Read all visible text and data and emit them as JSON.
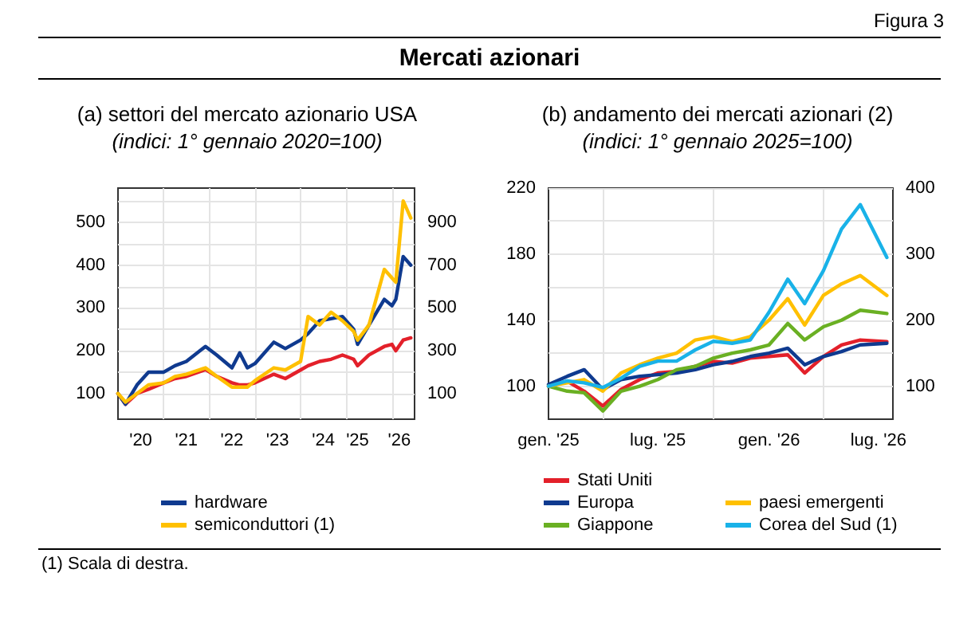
{
  "chart_data": [
    {
      "type": "line",
      "title": "(a) settori del mercato azionario USA",
      "subtitle": "(indici: 1° gennaio 2020=100)",
      "annotations": [
        "Figura 3",
        "Mercati azionari"
      ],
      "x": [
        "2020-01",
        "2020-03",
        "2020-06",
        "2020-09",
        "2021-01",
        "2021-04",
        "2021-07",
        "2021-12",
        "2022-03",
        "2022-07",
        "2022-09",
        "2022-11",
        "2023-01",
        "2023-06",
        "2023-09",
        "2024-01",
        "2024-03",
        "2024-06",
        "2024-09",
        "2024-12",
        "2025-03",
        "2025-04",
        "2025-07",
        "2025-11",
        "2026-01",
        "2026-02",
        "2026-04",
        "2026-06"
      ],
      "series": [
        {
          "color": "#e3202a",
          "values": [
            100,
            75,
            100,
            110,
            125,
            135,
            140,
            156,
            140,
            125,
            120,
            120,
            125,
            145,
            135,
            155,
            165,
            175,
            180,
            190,
            180,
            165,
            190,
            210,
            215,
            200,
            225,
            230
          ]
        },
        {
          "name": "hardware",
          "color": "#0f3a8f",
          "values": [
            100,
            75,
            120,
            150,
            150,
            165,
            175,
            210,
            190,
            160,
            195,
            160,
            170,
            220,
            205,
            225,
            240,
            270,
            275,
            280,
            250,
            215,
            260,
            320,
            305,
            320,
            420,
            400
          ]
        },
        {
          "name": "semiconduttori (1)",
          "color": "#ffc000",
          "axis": "y2",
          "values": [
            100,
            60,
            100,
            140,
            150,
            180,
            190,
            220,
            180,
            130,
            130,
            130,
            160,
            220,
            210,
            250,
            460,
            420,
            480,
            440,
            390,
            350,
            420,
            680,
            640,
            620,
            1000,
            920
          ]
        }
      ],
      "xlim": [
        "2020-01-01",
        "2026-07-01"
      ],
      "xticks": [
        {
          "value": "2020-07-01",
          "label": "'20"
        },
        {
          "value": "2021-07-01",
          "label": "'21"
        },
        {
          "value": "2022-07-01",
          "label": "'22"
        },
        {
          "value": "2023-07-01",
          "label": "'23"
        },
        {
          "value": "2024-07-01",
          "label": "'24"
        },
        {
          "value": "2025-04-01",
          "label": "'25"
        },
        {
          "value": "2026-03-01",
          "label": "'26"
        },
        {
          "value": "2021-01-01",
          "label": null
        },
        {
          "value": "2022-01-01",
          "label": null
        },
        {
          "value": "2023-01-01",
          "label": null
        },
        {
          "value": "2024-01-01",
          "label": null
        },
        {
          "value": "2025-01-01",
          "label": null
        },
        {
          "value": "2026-01-01",
          "label": null
        }
      ],
      "ylim": [
        40,
        580
      ],
      "yticks": [
        100,
        200,
        300,
        400,
        500,
        {
          "value": 150,
          "label": null
        },
        {
          "value": 250,
          "label": null
        },
        {
          "value": 350,
          "label": null
        },
        {
          "value": 450,
          "label": null
        },
        {
          "value": 550,
          "label": null
        }
      ],
      "y2lim": [
        -20,
        1060
      ],
      "y2ticks": [
        100,
        300,
        500,
        700,
        900
      ],
      "grid": true,
      "legend": "bottom",
      "marker": "none",
      "line_style": "solid"
    },
    {
      "type": "line",
      "title": "(b) andamento dei mercati azionari (2)",
      "subtitle": "(indici: 1° gennaio 2025=100)",
      "annotations": [
        "(1) Scala di destra."
      ],
      "x": [
        "2025-01",
        "2025-02",
        "2025-03",
        "2025-04",
        "2025-05",
        "2025-06",
        "2025-07",
        "2025-08",
        "2025-09",
        "2025-10",
        "2025-11",
        "2025-12",
        "2026-01",
        "2026-02",
        "2026-03",
        "2026-04",
        "2026-05",
        "2026-06",
        "2026-07-15"
      ],
      "series": [
        {
          "name": "Stati Uniti",
          "color": "#e3202a",
          "values": [
            100,
            103,
            97,
            88,
            98,
            104,
            108,
            109,
            112,
            115,
            114,
            117,
            118,
            119,
            108,
            118,
            125,
            128,
            127
          ]
        },
        {
          "name": "Europa",
          "color": "#0f3a8f",
          "values": [
            101,
            106,
            110,
            98,
            104,
            106,
            107,
            108,
            110,
            113,
            115,
            118,
            120,
            123,
            113,
            118,
            121,
            125,
            126
          ]
        },
        {
          "name": "Giappone",
          "color": "#6ab023",
          "values": [
            100,
            97,
            96,
            85,
            97,
            100,
            104,
            110,
            112,
            117,
            120,
            122,
            125,
            138,
            128,
            136,
            140,
            146,
            144
          ]
        },
        {
          "name": "paesi emergenti",
          "color": "#ffc000",
          "values": [
            100,
            102,
            104,
            97,
            108,
            113,
            117,
            120,
            128,
            130,
            127,
            130,
            140,
            153,
            137,
            155,
            162,
            167,
            155
          ]
        },
        {
          "name": "Corea del Sud (1)",
          "color": "#19b2e8",
          "axis": "y2",
          "values": [
            100,
            108,
            105,
            98,
            112,
            130,
            138,
            138,
            155,
            168,
            165,
            170,
            212,
            262,
            225,
            275,
            338,
            375,
            295
          ]
        }
      ],
      "xlim": [
        "2025-01-01",
        "2026-07-25"
      ],
      "xticks": [
        {
          "value": "2025-01-01",
          "label": "gen. '25"
        },
        {
          "value": "2025-07-01",
          "label": "lug. '25"
        },
        {
          "value": "2026-01-01",
          "label": "gen. '26"
        },
        {
          "value": "2026-07-01",
          "label": "lug. '26"
        },
        {
          "value": "2025-04-01",
          "label": null
        },
        {
          "value": "2025-10-01",
          "label": null
        },
        {
          "value": "2026-04-01",
          "label": null
        }
      ],
      "ylim": [
        80,
        220
      ],
      "yticks": [
        100,
        140,
        180,
        220,
        {
          "value": 120,
          "label": null
        },
        {
          "value": 160,
          "label": null
        },
        {
          "value": 200,
          "label": null
        }
      ],
      "y2lim": [
        50,
        400
      ],
      "y2ticks": [
        100,
        200,
        300,
        400
      ],
      "grid": true,
      "legend": "bottom",
      "marker": "none",
      "line_style": "solid"
    }
  ]
}
